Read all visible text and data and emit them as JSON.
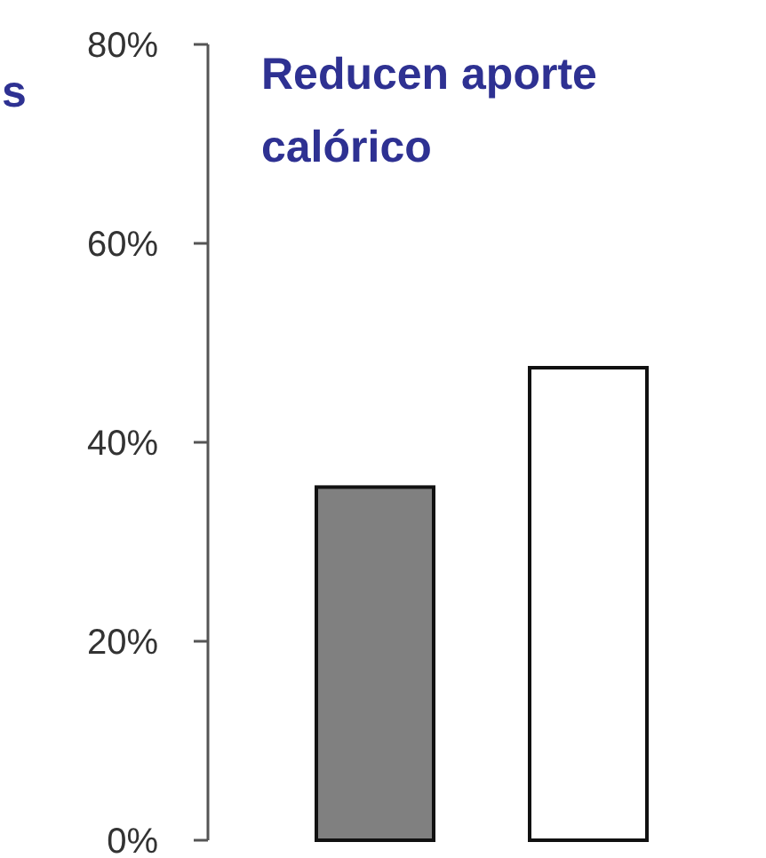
{
  "chart_data": {
    "type": "bar",
    "title": "Reducen aporte calórico",
    "categories": [
      null,
      null
    ],
    "values": [
      35.5,
      47.5
    ],
    "colors": [
      "#808080",
      "#ffffff"
    ],
    "ylim": [
      0,
      80
    ],
    "yticks": [
      {
        "value": 0,
        "label": "0%"
      },
      {
        "value": 20,
        "label": "20%"
      },
      {
        "value": 40,
        "label": "40%"
      },
      {
        "value": 60,
        "label": "60%"
      },
      {
        "value": 80,
        "label": "80%"
      }
    ],
    "annotations": [
      "s"
    ]
  }
}
